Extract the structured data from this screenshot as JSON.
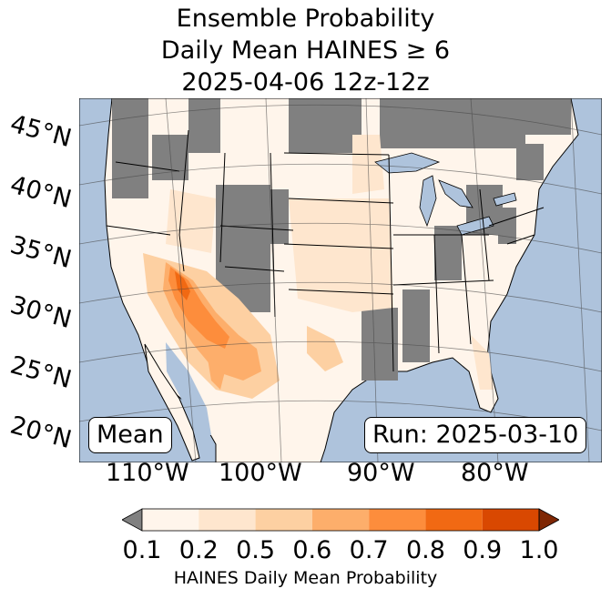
{
  "title": {
    "line1": "Ensemble Probability",
    "line2": "Daily Mean HAINES ≥ 6",
    "line3": "2025-04-06 12z-12z"
  },
  "map": {
    "latitude_labels": [
      "45°N",
      "40°N",
      "35°N",
      "30°N",
      "25°N",
      "20°N"
    ],
    "longitude_labels": [
      "110°W",
      "100°W",
      "90°W",
      "80°W"
    ],
    "colors": {
      "ocean": "#aec3dc",
      "lakes": "#aec3dc",
      "no_data_gray": "#808080",
      "land_low": "#fff5eb"
    }
  },
  "mean_label": "Mean",
  "run_label": "Run: 2025-03-10",
  "colorbar": {
    "label": "HAINES Daily Mean Probability",
    "ticks": [
      "0.1",
      "0.2",
      "0.5",
      "0.6",
      "0.7",
      "0.8",
      "0.9",
      "1.0"
    ],
    "colors": [
      "#fff5eb",
      "#fee6ce",
      "#fdd0a2",
      "#fdae6b",
      "#fd8d3c",
      "#f16913",
      "#d94801",
      "#a63603"
    ],
    "under_color": "#808080",
    "over_color": "#7f2704"
  }
}
